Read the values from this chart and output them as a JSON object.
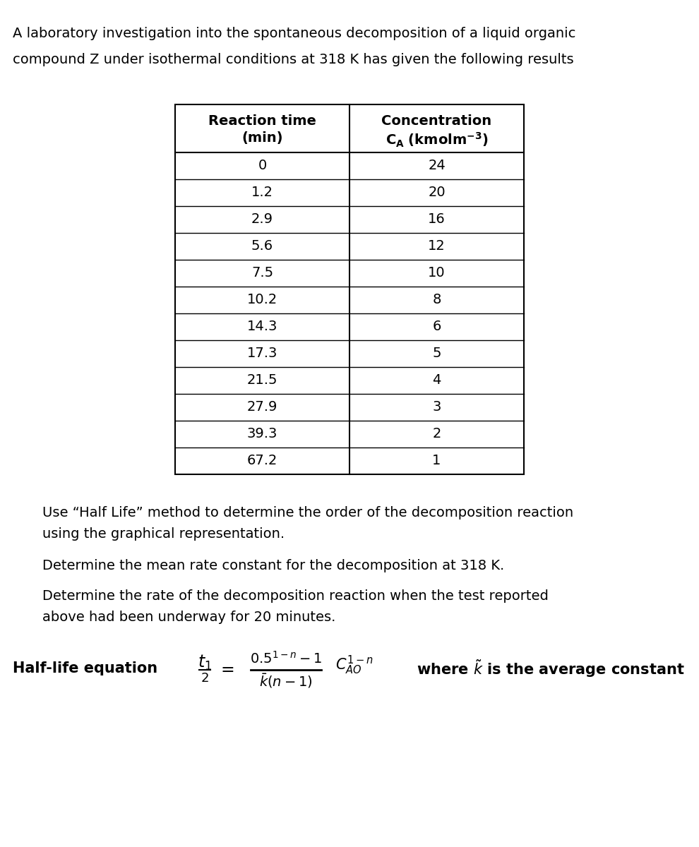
{
  "title_line1": "A laboratory investigation into the spontaneous decomposition of a liquid organic",
  "title_line2": "compound Z under isothermal conditions at 318 K has given the following results",
  "col1_header1": "Reaction time",
  "col1_header2": "(min)",
  "col2_header1": "Concentration",
  "col2_header2": "CA (kmolm⁻³)",
  "reaction_times": [
    "0",
    "1.2",
    "2.9",
    "5.6",
    "7.5",
    "10.2",
    "14.3",
    "17.3",
    "21.5",
    "27.9",
    "39.3",
    "67.2"
  ],
  "concentrations": [
    "24",
    "20",
    "16",
    "12",
    "10",
    "8",
    "6",
    "5",
    "4",
    "3",
    "2",
    "1"
  ],
  "question1": "Use “Half Life” method to determine the order of the decomposition reaction",
  "question1b": "using the graphical representation.",
  "question2": "Determine the mean rate constant for the decomposition at 318 K.",
  "question3": "Determine the rate of the decomposition reaction when the test reported",
  "question3b": "above had been underway for 20 minutes.",
  "halflife_label": "Half-life equation",
  "halflife_where": "where ḳ is the average constant",
  "bg_color": "#ffffff",
  "text_color": "#000000",
  "title_fontsize": 14,
  "table_header_fontsize": 14,
  "table_data_fontsize": 14,
  "question_fontsize": 14,
  "eq_fontsize": 15
}
